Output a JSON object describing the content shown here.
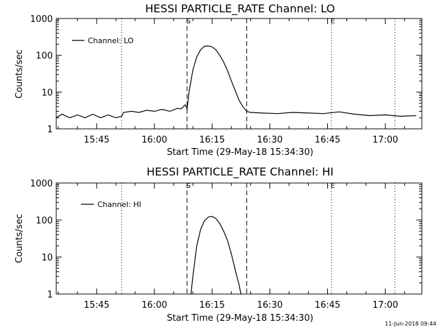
{
  "chart_data": [
    {
      "type": "line",
      "title": "HESSI PARTICLE_RATE Channel: LO",
      "xlabel": "Start Time (29-May-18 15:34:30)",
      "ylabel": "Counts/sec",
      "yscale": "log",
      "ylim": [
        1,
        1000
      ],
      "yticks": [
        "1",
        "10",
        "100",
        "1000"
      ],
      "xlim": [
        "15:34:30",
        "17:09:30"
      ],
      "xticks": [
        "15:45",
        "16:00",
        "16:15",
        "16:30",
        "16:45",
        "17:00"
      ],
      "legend": {
        "label": "Channel: LO",
        "placement": "top-left"
      },
      "markers": [
        {
          "time": "16:08:30",
          "style": "dashed",
          "label": "S"
        },
        {
          "time": "16:24:00",
          "style": "dashed",
          "label": ""
        },
        {
          "time": "15:51:30",
          "style": "dotted",
          "label": ""
        },
        {
          "time": "16:46:00",
          "style": "dotted",
          "label": "E"
        },
        {
          "time": "17:02:30",
          "style": "dotted",
          "label": ""
        }
      ],
      "series": [
        {
          "name": "Channel: LO",
          "x": [
            "15:34:30",
            "15:36:00",
            "15:38:00",
            "15:40:00",
            "15:42:00",
            "15:44:00",
            "15:46:00",
            "15:48:00",
            "15:50:00",
            "15:51:30",
            "15:52:00",
            "15:54:00",
            "15:56:00",
            "15:58:00",
            "16:00:00",
            "16:02:00",
            "16:04:00",
            "16:06:00",
            "16:07:00",
            "16:08:00",
            "16:08:30",
            "16:09:00",
            "16:10:00",
            "16:11:00",
            "16:12:00",
            "16:13:00",
            "16:14:00",
            "16:15:00",
            "16:16:00",
            "16:17:00",
            "16:18:00",
            "16:19:00",
            "16:20:00",
            "16:21:00",
            "16:22:00",
            "16:23:00",
            "16:24:00",
            "16:25:00",
            "16:28:00",
            "16:32:00",
            "16:36:00",
            "16:40:00",
            "16:44:00",
            "16:48:00",
            "16:52:00",
            "16:56:00",
            "17:00:00",
            "17:04:00",
            "17:08:00"
          ],
          "y": [
            2.0,
            2.5,
            2.0,
            2.4,
            2.0,
            2.5,
            2.0,
            2.4,
            2.0,
            2.2,
            2.8,
            3.0,
            2.8,
            3.2,
            3.0,
            3.4,
            3.0,
            3.6,
            3.5,
            4.5,
            3.5,
            10,
            40,
            90,
            140,
            175,
            180,
            170,
            140,
            100,
            65,
            38,
            20,
            11,
            6,
            4,
            3,
            2.8,
            2.7,
            2.6,
            2.8,
            2.7,
            2.6,
            2.9,
            2.5,
            2.3,
            2.4,
            2.2,
            2.3
          ]
        }
      ]
    },
    {
      "type": "line",
      "title": "HESSI PARTICLE_RATE Channel: HI",
      "xlabel": "Start Time (29-May-18 15:34:30)",
      "ylabel": "Counts/sec",
      "yscale": "log",
      "ylim": [
        1,
        1000
      ],
      "yticks": [
        "1",
        "10",
        "100",
        "1000"
      ],
      "xlim": [
        "15:34:30",
        "17:09:30"
      ],
      "xticks": [
        "15:45",
        "16:00",
        "16:15",
        "16:30",
        "16:45",
        "17:00"
      ],
      "legend": {
        "label": "Channel: HI",
        "placement": "top-left"
      },
      "markers": [
        {
          "time": "16:08:30",
          "style": "dashed",
          "label": "S"
        },
        {
          "time": "16:24:00",
          "style": "dashed",
          "label": ""
        },
        {
          "time": "15:51:30",
          "style": "dotted",
          "label": ""
        },
        {
          "time": "16:46:00",
          "style": "dotted",
          "label": "E"
        },
        {
          "time": "17:02:30",
          "style": "dotted",
          "label": ""
        }
      ],
      "series": [
        {
          "name": "Channel: HI",
          "x": [
            "16:09:30",
            "16:10:00",
            "16:11:00",
            "16:12:00",
            "16:13:00",
            "16:14:00",
            "16:15:00",
            "16:16:00",
            "16:17:00",
            "16:18:00",
            "16:19:00",
            "16:20:00",
            "16:21:00",
            "16:22:00",
            "16:22:30"
          ],
          "y": [
            1.0,
            3,
            20,
            55,
            95,
            120,
            125,
            110,
            80,
            50,
            28,
            12,
            4.5,
            1.8,
            1.0
          ]
        }
      ]
    }
  ],
  "footer": {
    "timestamp": "11-Jun-2018 09:44"
  }
}
